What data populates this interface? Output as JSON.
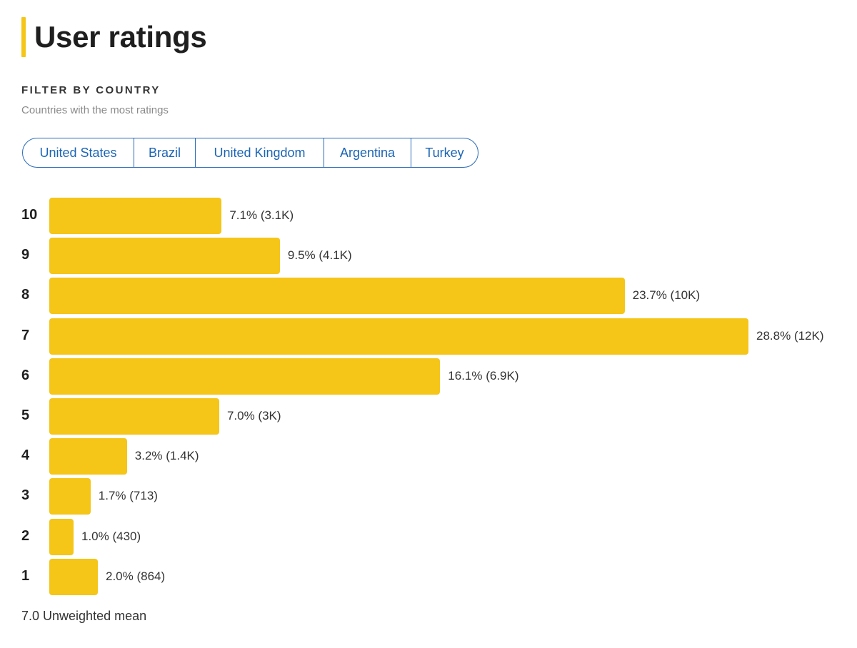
{
  "header": {
    "title": "User ratings"
  },
  "filter": {
    "label": "FILTER BY COUNTRY",
    "subtitle": "Countries with the most ratings",
    "countries": [
      "United States",
      "Brazil",
      "United Kingdom",
      "Argentina",
      "Turkey"
    ]
  },
  "colors": {
    "bar": "#f5c518",
    "accent": "#f5c518",
    "link": "#1b65b5"
  },
  "chart_data": {
    "type": "bar",
    "orientation": "horizontal",
    "title": "User ratings",
    "categories": [
      "10",
      "9",
      "8",
      "7",
      "6",
      "5",
      "4",
      "3",
      "2",
      "1"
    ],
    "values": [
      7.1,
      9.5,
      23.7,
      28.8,
      16.1,
      7.0,
      3.2,
      1.7,
      1.0,
      2.0
    ],
    "counts": [
      "3.1K",
      "4.1K",
      "10K",
      "12K",
      "6.9K",
      "3K",
      "1.4K",
      "713",
      "430",
      "864"
    ],
    "data_labels": [
      "7.1% (3.1K)",
      "9.5% (4.1K)",
      "23.7% (10K)",
      "28.8% (12K)",
      "16.1% (6.9K)",
      "7.0% (3K)",
      "3.2% (1.4K)",
      "1.7% (713)",
      "1.0% (430)",
      "2.0% (864)"
    ],
    "xlabel": "",
    "ylabel": "",
    "grid": false
  },
  "footer": {
    "mean_text": "7.0 Unweighted mean"
  }
}
